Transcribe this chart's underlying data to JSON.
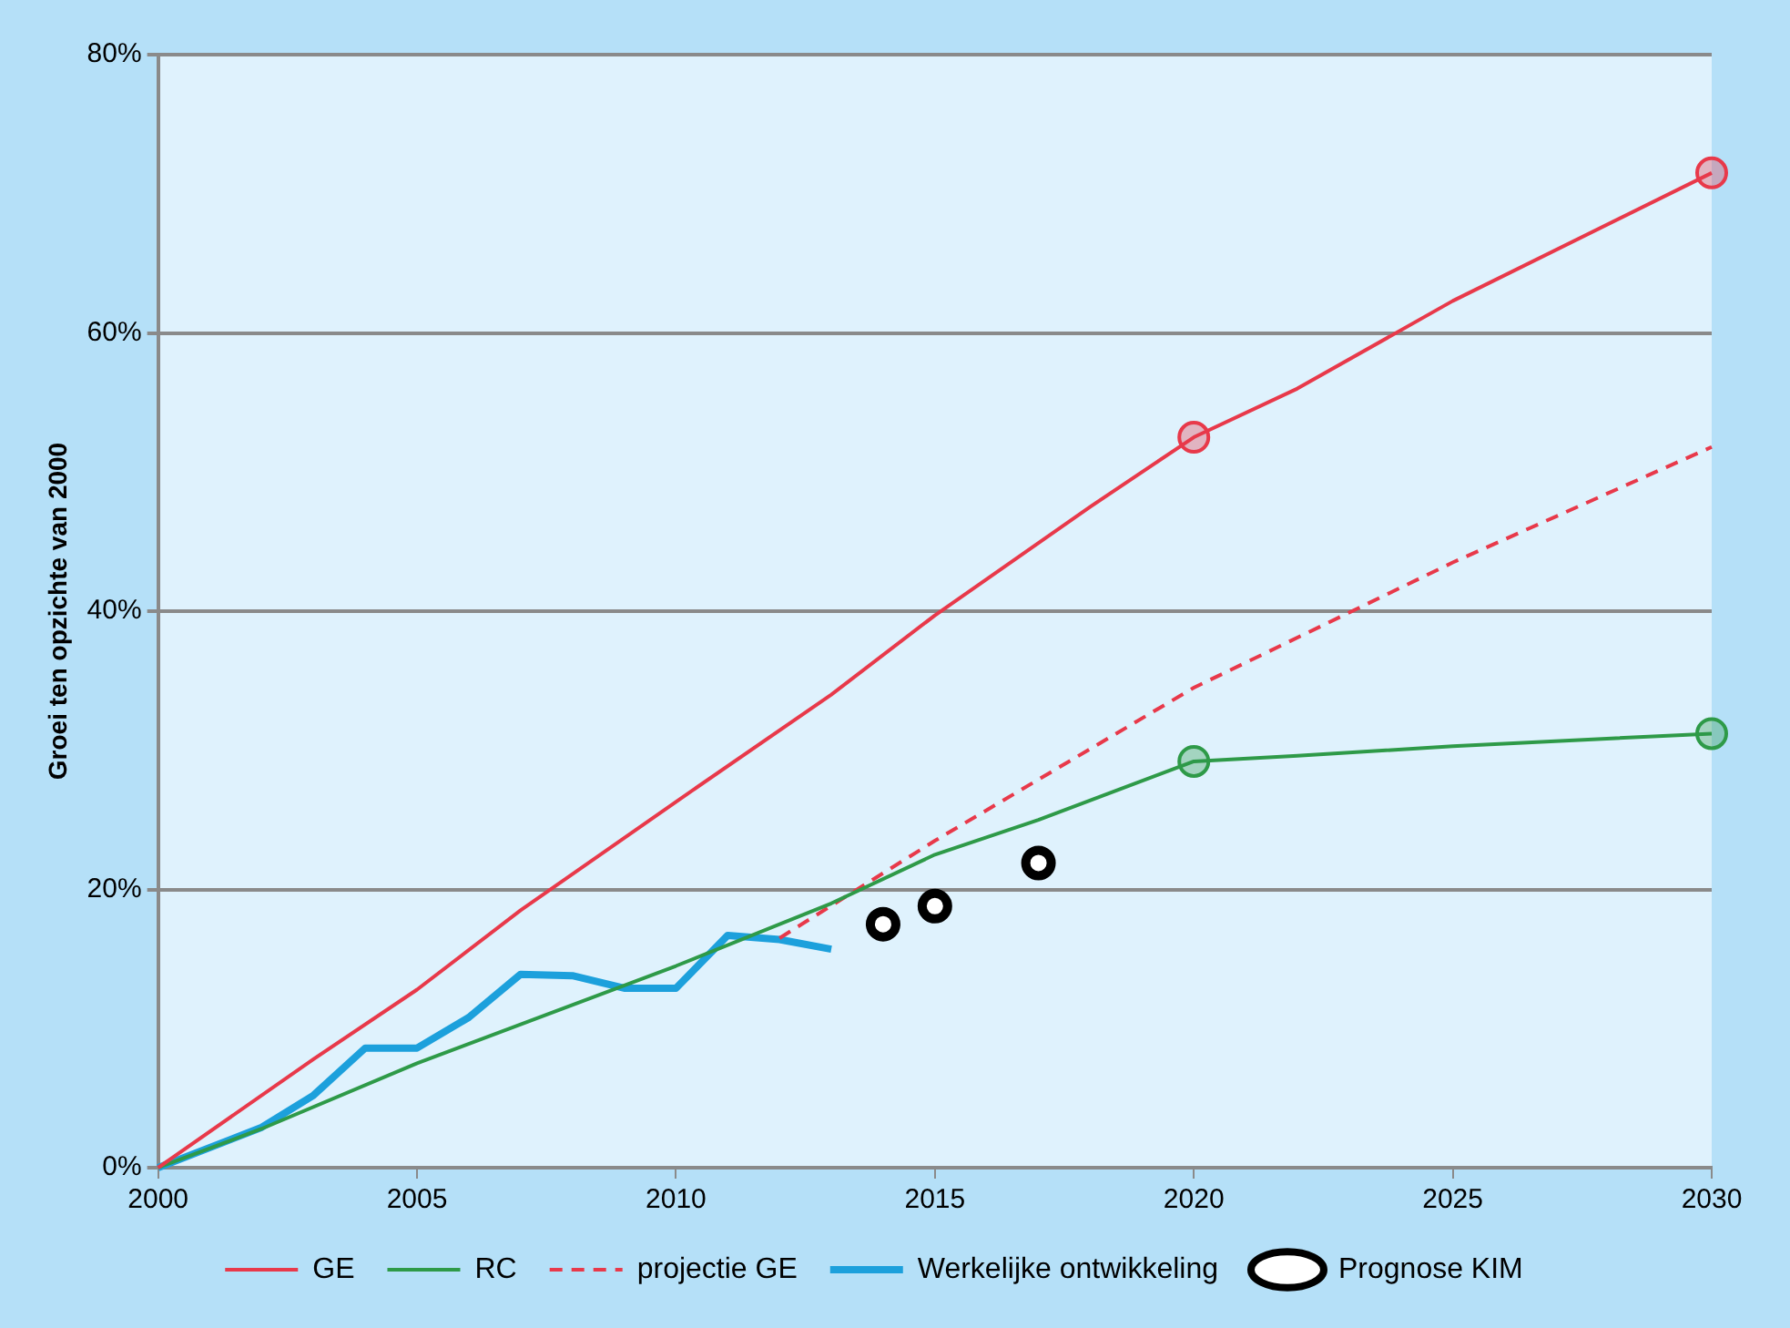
{
  "chart_data": {
    "type": "line",
    "ylabel": "Groei ten opzichte van 2000",
    "xlim": [
      2000,
      2030
    ],
    "xticks": [
      2000,
      2005,
      2010,
      2015,
      2020,
      2025,
      2030
    ],
    "ylim": [
      0,
      80
    ],
    "yticks": [
      {
        "value": 0,
        "label": "0%"
      },
      {
        "value": 20,
        "label": "20%"
      },
      {
        "value": 40,
        "label": "40%"
      },
      {
        "value": 60,
        "label": "60%"
      },
      {
        "value": 80,
        "label": "80%"
      }
    ],
    "grid": "y",
    "legend": "bottom",
    "marker": "none",
    "series": [
      {
        "name": "GE",
        "color": "#e8394a",
        "x": [
          2000,
          2003,
          2005,
          2007,
          2010,
          2013,
          2015,
          2018,
          2020,
          2022,
          2025,
          2030
        ],
        "values": [
          0,
          7.8,
          12.8,
          18.5,
          26.3,
          34,
          39.7,
          47.5,
          52.5,
          56,
          62.3,
          71.5
        ]
      },
      {
        "name": "RC",
        "color": "#2e9a48",
        "x": [
          2000,
          2002,
          2005,
          2010,
          2013,
          2015,
          2017,
          2020,
          2022,
          2025,
          2030
        ],
        "values": [
          0,
          2.8,
          7.5,
          14.5,
          19,
          22.5,
          25,
          29.2,
          29.6,
          30.3,
          31.2
        ]
      },
      {
        "name": "projectie GE",
        "line_style": "dashed",
        "color": "#e8394a",
        "x": [
          2012,
          2015,
          2020,
          2025,
          2030
        ],
        "values": [
          16.5,
          23.5,
          34.5,
          43.5,
          51.8
        ]
      },
      {
        "name": "Werkelijke ontwikkeling",
        "color": "#1ca0dc",
        "x": [
          2000,
          2002,
          2003,
          2004,
          2005,
          2006,
          2007,
          2008,
          2009,
          2010,
          2011,
          2012,
          2013
        ],
        "values": [
          0,
          2.9,
          5.2,
          8.6,
          8.6,
          10.8,
          13.9,
          13.8,
          12.9,
          12.9,
          16.7,
          16.4,
          15.7
        ]
      },
      {
        "name": "Prognose KIM",
        "type": "scatter",
        "marker": "circle",
        "color": "#000000",
        "x": [
          2014,
          2015,
          2017
        ],
        "values": [
          17.5,
          18.8,
          21.9
        ]
      },
      {
        "type": "scatter",
        "marker": "circle",
        "color": "#e8394a",
        "x": [
          2020,
          2030
        ],
        "values": [
          52.5,
          71.5
        ]
      },
      {
        "type": "scatter",
        "marker": "circle",
        "color": "#2e9a48",
        "x": [
          2020,
          2030
        ],
        "values": [
          29.2,
          31.2
        ]
      }
    ]
  }
}
